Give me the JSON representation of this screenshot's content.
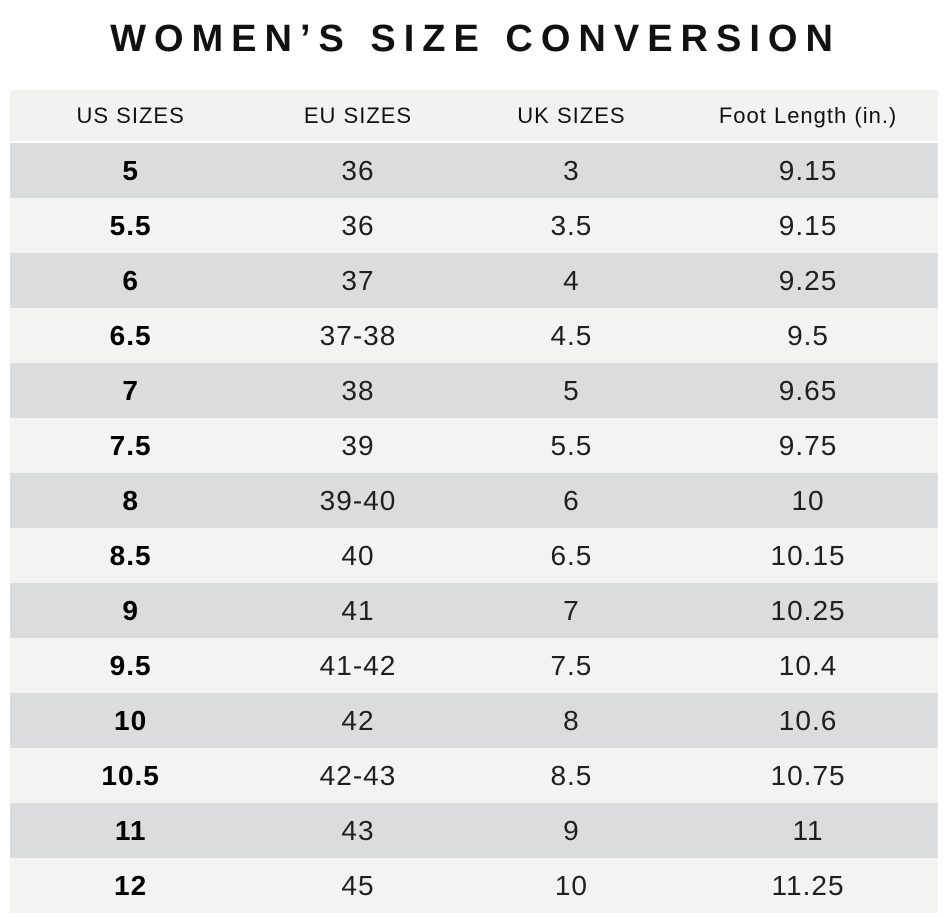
{
  "page": {
    "title": "WOMEN’S SIZE CONVERSION"
  },
  "colors": {
    "title": "#111111",
    "text": "#1f1f1f",
    "header_bg": "#f2f2f1",
    "row_dark": "#dbdcdd",
    "row_light": "#f3f3f2",
    "page_bg": "#ffffff"
  },
  "chart_data": {
    "type": "table",
    "title": "WOMEN’S SIZE CONVERSION",
    "columns": [
      "US SIZES",
      "EU SIZES",
      "UK SIZES",
      "Foot Length (in.)"
    ],
    "rows": [
      [
        "5",
        "36",
        "3",
        "9.15"
      ],
      [
        "5.5",
        "36",
        "3.5",
        "9.15"
      ],
      [
        "6",
        "37",
        "4",
        "9.25"
      ],
      [
        "6.5",
        "37-38",
        "4.5",
        "9.5"
      ],
      [
        "7",
        "38",
        "5",
        "9.65"
      ],
      [
        "7.5",
        "39",
        "5.5",
        "9.75"
      ],
      [
        "8",
        "39-40",
        "6",
        "10"
      ],
      [
        "8.5",
        "40",
        "6.5",
        "10.15"
      ],
      [
        "9",
        "41",
        "7",
        "10.25"
      ],
      [
        "9.5",
        "41-42",
        "7.5",
        "10.4"
      ],
      [
        "10",
        "42",
        "8",
        "10.6"
      ],
      [
        "10.5",
        "42-43",
        "8.5",
        "10.75"
      ],
      [
        "11",
        "43",
        "9",
        "11"
      ],
      [
        "12",
        "45",
        "10",
        "11.25"
      ]
    ],
    "layout": {
      "striped": true,
      "stripe_pattern": "odd data rows shaded gray, even rows off-white",
      "first_column_bold": true,
      "alignment": "center"
    }
  }
}
